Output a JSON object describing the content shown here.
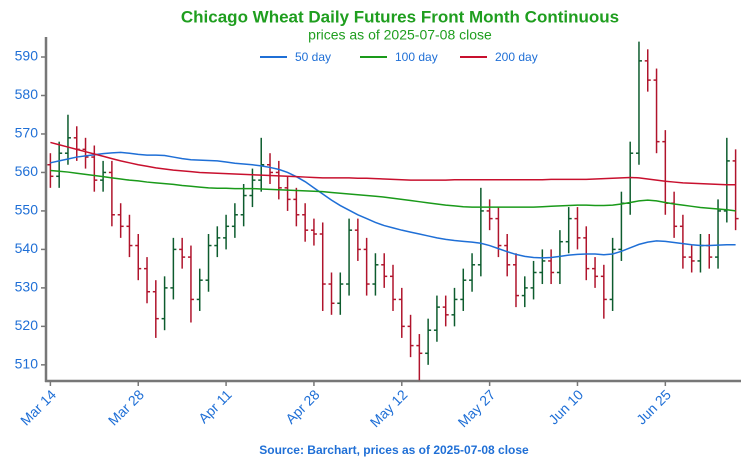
{
  "chart_data": {
    "type": "ohlc",
    "title": "Chicago Wheat Daily Futures Front Month Continuous",
    "subtitle": "prices as of 2025-07-08 close",
    "source": "Source: Barchart, prices as of 2025-07-08 close",
    "categories": [
      "Mar 14",
      null,
      null,
      null,
      null,
      null,
      null,
      null,
      null,
      null,
      "Mar 28",
      null,
      null,
      null,
      null,
      null,
      null,
      null,
      null,
      null,
      "Apr 11",
      null,
      null,
      null,
      null,
      null,
      null,
      null,
      null,
      null,
      "Apr 28",
      null,
      null,
      null,
      null,
      null,
      null,
      null,
      null,
      null,
      "May 12",
      null,
      null,
      null,
      null,
      null,
      null,
      null,
      null,
      null,
      "May 27",
      null,
      null,
      null,
      null,
      null,
      null,
      null,
      null,
      null,
      "Jun 10",
      null,
      null,
      null,
      null,
      null,
      null,
      null,
      null,
      null,
      "Jun 25",
      null,
      null,
      null,
      null,
      null,
      null,
      null,
      null
    ],
    "ohlc": {
      "up_color": "#0d5c2e",
      "down_color": "#b0142c",
      "open": [
        562,
        559,
        565,
        569,
        566,
        564,
        558,
        560,
        549,
        546,
        541,
        535,
        529,
        522,
        530,
        540,
        538,
        527,
        532,
        541,
        543,
        546,
        549,
        554,
        558,
        562,
        560,
        556,
        553,
        549,
        545,
        544,
        531,
        526,
        531,
        545,
        540,
        531,
        536,
        533,
        527,
        520,
        515,
        513,
        519,
        525,
        523,
        527,
        532,
        536,
        550,
        548,
        541,
        536,
        528,
        530,
        534,
        537,
        534,
        542,
        548,
        543,
        535,
        533,
        527,
        540,
        552,
        565,
        589,
        584,
        568,
        552,
        546,
        538,
        537,
        541,
        538,
        550,
        563
      ],
      "high": [
        565,
        568,
        575,
        572,
        569,
        567,
        563,
        563,
        552,
        549,
        544,
        538,
        532,
        533,
        543,
        543,
        541,
        535,
        544,
        546,
        549,
        552,
        557,
        561,
        569,
        565,
        563,
        559,
        556,
        552,
        548,
        547,
        534,
        534,
        548,
        548,
        543,
        539,
        539,
        536,
        530,
        523,
        518,
        522,
        528,
        528,
        530,
        535,
        539,
        556,
        553,
        551,
        544,
        539,
        533,
        537,
        540,
        540,
        545,
        551,
        551,
        546,
        538,
        536,
        543,
        555,
        568,
        594,
        592,
        587,
        571,
        555,
        549,
        541,
        544,
        544,
        553,
        569,
        566
      ],
      "low": [
        556,
        556,
        562,
        563,
        561,
        555,
        555,
        546,
        543,
        538,
        532,
        526,
        517,
        519,
        527,
        535,
        521,
        524,
        529,
        538,
        540,
        543,
        546,
        551,
        555,
        557,
        553,
        550,
        546,
        542,
        541,
        524,
        523,
        523,
        528,
        537,
        528,
        528,
        530,
        524,
        517,
        512,
        506,
        510,
        516,
        520,
        520,
        524,
        529,
        533,
        545,
        538,
        533,
        525,
        525,
        527,
        531,
        531,
        531,
        539,
        540,
        532,
        530,
        522,
        524,
        537,
        549,
        562,
        581,
        565,
        549,
        543,
        535,
        534,
        534,
        535,
        535,
        547,
        545
      ],
      "close": [
        559,
        565,
        569,
        566,
        564,
        558,
        560,
        549,
        546,
        541,
        535,
        529,
        522,
        530,
        540,
        538,
        527,
        532,
        541,
        543,
        546,
        549,
        554,
        558,
        562,
        560,
        556,
        553,
        549,
        545,
        544,
        531,
        526,
        531,
        545,
        540,
        531,
        536,
        533,
        527,
        520,
        515,
        513,
        519,
        525,
        523,
        527,
        532,
        536,
        550,
        548,
        541,
        536,
        528,
        530,
        534,
        537,
        534,
        542,
        548,
        543,
        535,
        533,
        527,
        540,
        552,
        565,
        589,
        584,
        568,
        552,
        546,
        538,
        537,
        541,
        538,
        550,
        563,
        548
      ]
    },
    "series": [
      {
        "name": "50 day",
        "color": "#1f6fd6",
        "values": [
          562.5,
          563,
          563.5,
          564,
          564.3,
          564.6,
          564.9,
          565.1,
          565.2,
          565,
          564.7,
          564.5,
          564.5,
          564.4,
          564,
          563.6,
          563.3,
          563.2,
          563.1,
          563,
          562.7,
          562.4,
          562.2,
          562,
          561.7,
          561.3,
          560.8,
          560,
          558.9,
          557.6,
          556,
          554.4,
          552.8,
          551.4,
          550.2,
          549,
          548,
          547,
          546.2,
          545.6,
          545,
          544.5,
          544,
          543.5,
          543,
          542.6,
          542.3,
          542.1,
          541.9,
          541.6,
          541,
          540.2,
          539.4,
          538.7,
          538.2,
          537.9,
          537.8,
          537.9,
          538.2,
          538.5,
          538.7,
          538.8,
          538.8,
          538.6,
          538.8,
          539.5,
          540.4,
          541.3,
          541.9,
          542.2,
          542.1,
          541.8,
          541.5,
          541.2,
          541,
          541,
          541.1,
          541.2,
          541.2
        ]
      },
      {
        "name": "100 day",
        "color": "#1a9a1a",
        "values": [
          560.5,
          560.3,
          560.1,
          559.8,
          559.5,
          559.2,
          558.9,
          558.6,
          558.3,
          558,
          557.8,
          557.5,
          557.3,
          557.1,
          556.9,
          556.6,
          556.4,
          556.2,
          556,
          555.9,
          555.9,
          555.8,
          555.8,
          555.8,
          555.7,
          555.6,
          555.5,
          555.4,
          555.3,
          555.2,
          555.1,
          555,
          554.8,
          554.6,
          554.4,
          554.2,
          554,
          553.8,
          553.6,
          553.3,
          553,
          552.7,
          552.4,
          552.1,
          551.8,
          551.5,
          551.3,
          551.1,
          551,
          551,
          551,
          551,
          551,
          551,
          551,
          551,
          551.1,
          551.2,
          551.3,
          551.4,
          551.5,
          551.5,
          551.4,
          551.4,
          551.5,
          551.8,
          552.2,
          552.6,
          552.8,
          552.6,
          552.2,
          551.8,
          551.5,
          551.2,
          550.9,
          550.7,
          550.5,
          550.3,
          550
        ]
      },
      {
        "name": "200 day",
        "color": "#c8102e",
        "values": [
          567.8,
          567.2,
          566.6,
          566,
          565.4,
          564.8,
          564.2,
          563.6,
          563,
          562.5,
          562,
          561.6,
          561.2,
          560.9,
          560.6,
          560.4,
          560.2,
          560,
          559.9,
          559.8,
          559.7,
          559.6,
          559.5,
          559.4,
          559.3,
          559.2,
          559.1,
          559,
          558.9,
          558.8,
          558.7,
          558.6,
          558.6,
          558.6,
          558.6,
          558.5,
          558.5,
          558.4,
          558.3,
          558.2,
          558.1,
          558,
          558,
          558,
          558,
          558,
          558.1,
          558.1,
          558.1,
          558.1,
          558.1,
          558.1,
          558.1,
          558.1,
          558.1,
          558.1,
          558.1,
          558.2,
          558.2,
          558.2,
          558.2,
          558.2,
          558.3,
          558.4,
          558.5,
          558.6,
          558.7,
          558.6,
          558.3,
          558,
          557.7,
          557.5,
          557.3,
          557.2,
          557.1,
          557,
          556.9,
          556.8,
          556.8
        ]
      }
    ],
    "ylim": [
      505.8,
      595.2
    ],
    "yticks": [
      510,
      520,
      530,
      540,
      550,
      560,
      570,
      580,
      590
    ],
    "grid": false,
    "legend": "top"
  }
}
